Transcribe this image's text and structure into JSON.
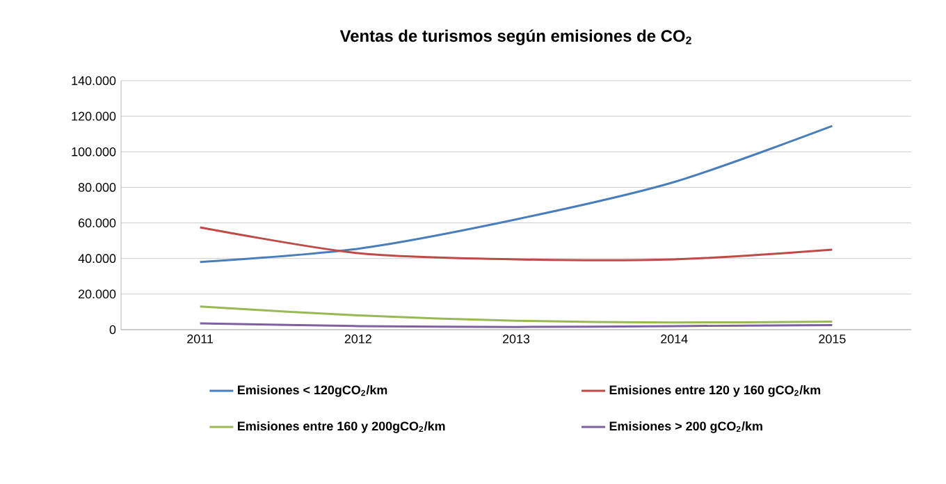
{
  "chart_data": {
    "type": "line",
    "title": "Ventas de turismos según emisiones de CO$_{2}$",
    "categories": [
      "2011",
      "2012",
      "2013",
      "2014",
      "2015"
    ],
    "series": [
      {
        "name": "Emisiones < 120gCO$_{2}$/km",
        "color": "#4a7ebb",
        "values": [
          38000,
          45500,
          62000,
          83000,
          114500
        ]
      },
      {
        "name": "Emisiones entre 120 y 160 gCO$_{2}$/km",
        "color": "#be4b48",
        "values": [
          57500,
          43000,
          39500,
          39500,
          45000
        ]
      },
      {
        "name": "Emisiones entre 160 y 200gCO$_{2}$/km",
        "color": "#98b954",
        "values": [
          13000,
          8000,
          5000,
          4000,
          4500
        ]
      },
      {
        "name": "Emisiones > 200 gCO$_{2}$/km",
        "color": "#7d60a0",
        "values": [
          3500,
          2000,
          1500,
          2000,
          2500
        ]
      }
    ],
    "ylim": [
      0,
      140000
    ],
    "yticks": [
      {
        "value": 0,
        "label": "0"
      },
      {
        "value": 20000,
        "label": "20.000"
      },
      {
        "value": 40000,
        "label": "40.000"
      },
      {
        "value": 60000,
        "label": "60.000"
      },
      {
        "value": 80000,
        "label": "80.000"
      },
      {
        "value": 100000,
        "label": "100.000"
      },
      {
        "value": 120000,
        "label": "120.000"
      },
      {
        "value": 140000,
        "label": "140.000"
      }
    ],
    "grid": "y",
    "legend": "bottom",
    "line_style": "solid"
  }
}
